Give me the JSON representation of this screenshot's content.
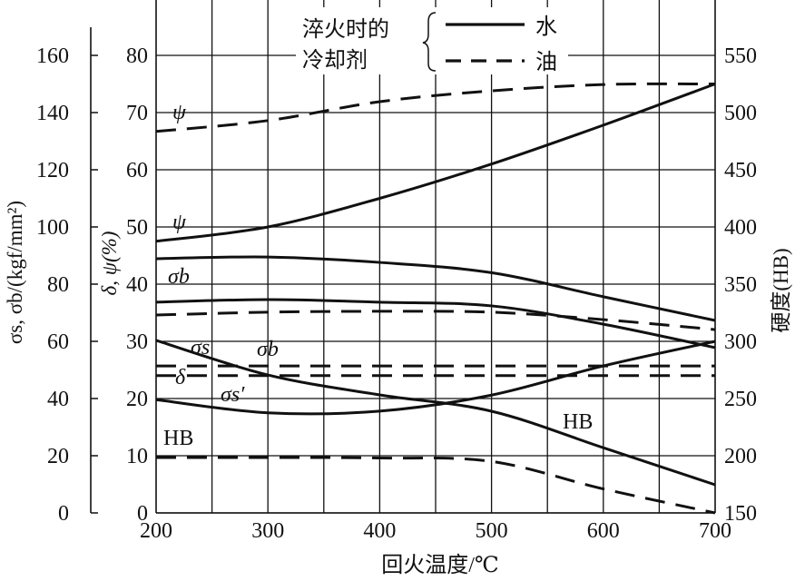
{
  "chart_data": {
    "type": "line",
    "xlabel": "回火温度/℃",
    "x_ticks": [
      "200",
      "300",
      "400",
      "500",
      "600",
      "700"
    ],
    "xlim": [
      200,
      700
    ],
    "axes": {
      "sigma": {
        "label": "σs, σb/(kgf/mm²)",
        "ticks": [
          "0",
          "20",
          "40",
          "60",
          "80",
          "100",
          "120",
          "140",
          "160"
        ],
        "ylim": [
          0,
          160
        ]
      },
      "pct": {
        "label": "δ, ψ(%)",
        "ticks": [
          "0",
          "10",
          "20",
          "30",
          "40",
          "50",
          "60",
          "70",
          "80"
        ],
        "ylim": [
          0,
          80
        ]
      },
      "hb": {
        "label": "硬度(HB)",
        "ticks": [
          "150",
          "200",
          "250",
          "300",
          "350",
          "400",
          "450",
          "500",
          "550"
        ],
        "ylim": [
          150,
          550
        ]
      }
    },
    "grid": true,
    "legend": {
      "title_line1": "淬火时的",
      "title_line2": "冷却剂",
      "entries": [
        {
          "label": "水",
          "style": "solid"
        },
        {
          "label": "油",
          "style": "dashed"
        }
      ],
      "position": "top"
    },
    "series": [
      {
        "axis": "pct",
        "style": "dashed",
        "x": [
          200,
          300,
          400,
          500,
          600,
          700
        ],
        "values": [
          66.7,
          68.6,
          71.9,
          73.8,
          74.9,
          75
        ]
      },
      {
        "axis": "pct",
        "style": "solid",
        "x": [
          200,
          300,
          400,
          500,
          600,
          700
        ],
        "values": [
          47.5,
          50,
          55,
          61,
          67.8,
          75
        ]
      },
      {
        "axis": "sigma",
        "style": "solid",
        "x": [
          200,
          300,
          400,
          500,
          600,
          700
        ],
        "values": [
          88.9,
          89.5,
          87.6,
          84,
          75.6,
          67.3
        ]
      },
      {
        "axis": "sigma",
        "style": "solid",
        "x": [
          200,
          300,
          400,
          500,
          600,
          700
        ],
        "values": [
          73.7,
          74.6,
          73.7,
          72.4,
          66,
          57.8
        ]
      },
      {
        "axis": "sigma",
        "style": "dashed",
        "x": [
          200,
          300,
          400,
          500,
          600,
          700
        ],
        "values": [
          69.2,
          70.2,
          70.5,
          70.2,
          67.6,
          64.1
        ]
      },
      {
        "axis": "sigma",
        "style": "dashed",
        "x": [
          200,
          300,
          400,
          500,
          600,
          700
        ],
        "values": [
          51.4,
          51.4,
          51.4,
          51.4,
          51.4,
          51.4
        ]
      },
      {
        "axis": "pct",
        "style": "dashed",
        "x": [
          200,
          300,
          400,
          500,
          600,
          700
        ],
        "values": [
          24,
          24,
          24,
          24,
          24,
          24
        ]
      },
      {
        "axis": "pct",
        "style": "solid",
        "x": [
          200,
          300,
          400,
          500,
          600,
          700
        ],
        "values": [
          19.8,
          17.5,
          17.8,
          20.6,
          25.7,
          30
        ]
      },
      {
        "axis": "hb",
        "style": "solid",
        "x": [
          200,
          300,
          400,
          500,
          600,
          700
        ],
        "values": [
          300.8,
          270.6,
          253.2,
          238.9,
          207,
          174.6
        ]
      },
      {
        "axis": "hb",
        "style": "dashed",
        "x": [
          200,
          300,
          400,
          500,
          600,
          700
        ],
        "values": [
          198.4,
          198.4,
          198,
          195,
          171,
          150
        ]
      }
    ],
    "annotations": {
      "psi_oil": "ψ",
      "psi_water": "ψ",
      "sigma_b_upper": "σb",
      "sigma_s": "σs",
      "sigma_b_lower": "σb",
      "delta": "δ",
      "sigma_s_prime": "σs′",
      "hb_left": "HB",
      "hb_right": "HB"
    },
    "colors": {
      "ink": "#111111",
      "background": "#ffffff"
    }
  }
}
